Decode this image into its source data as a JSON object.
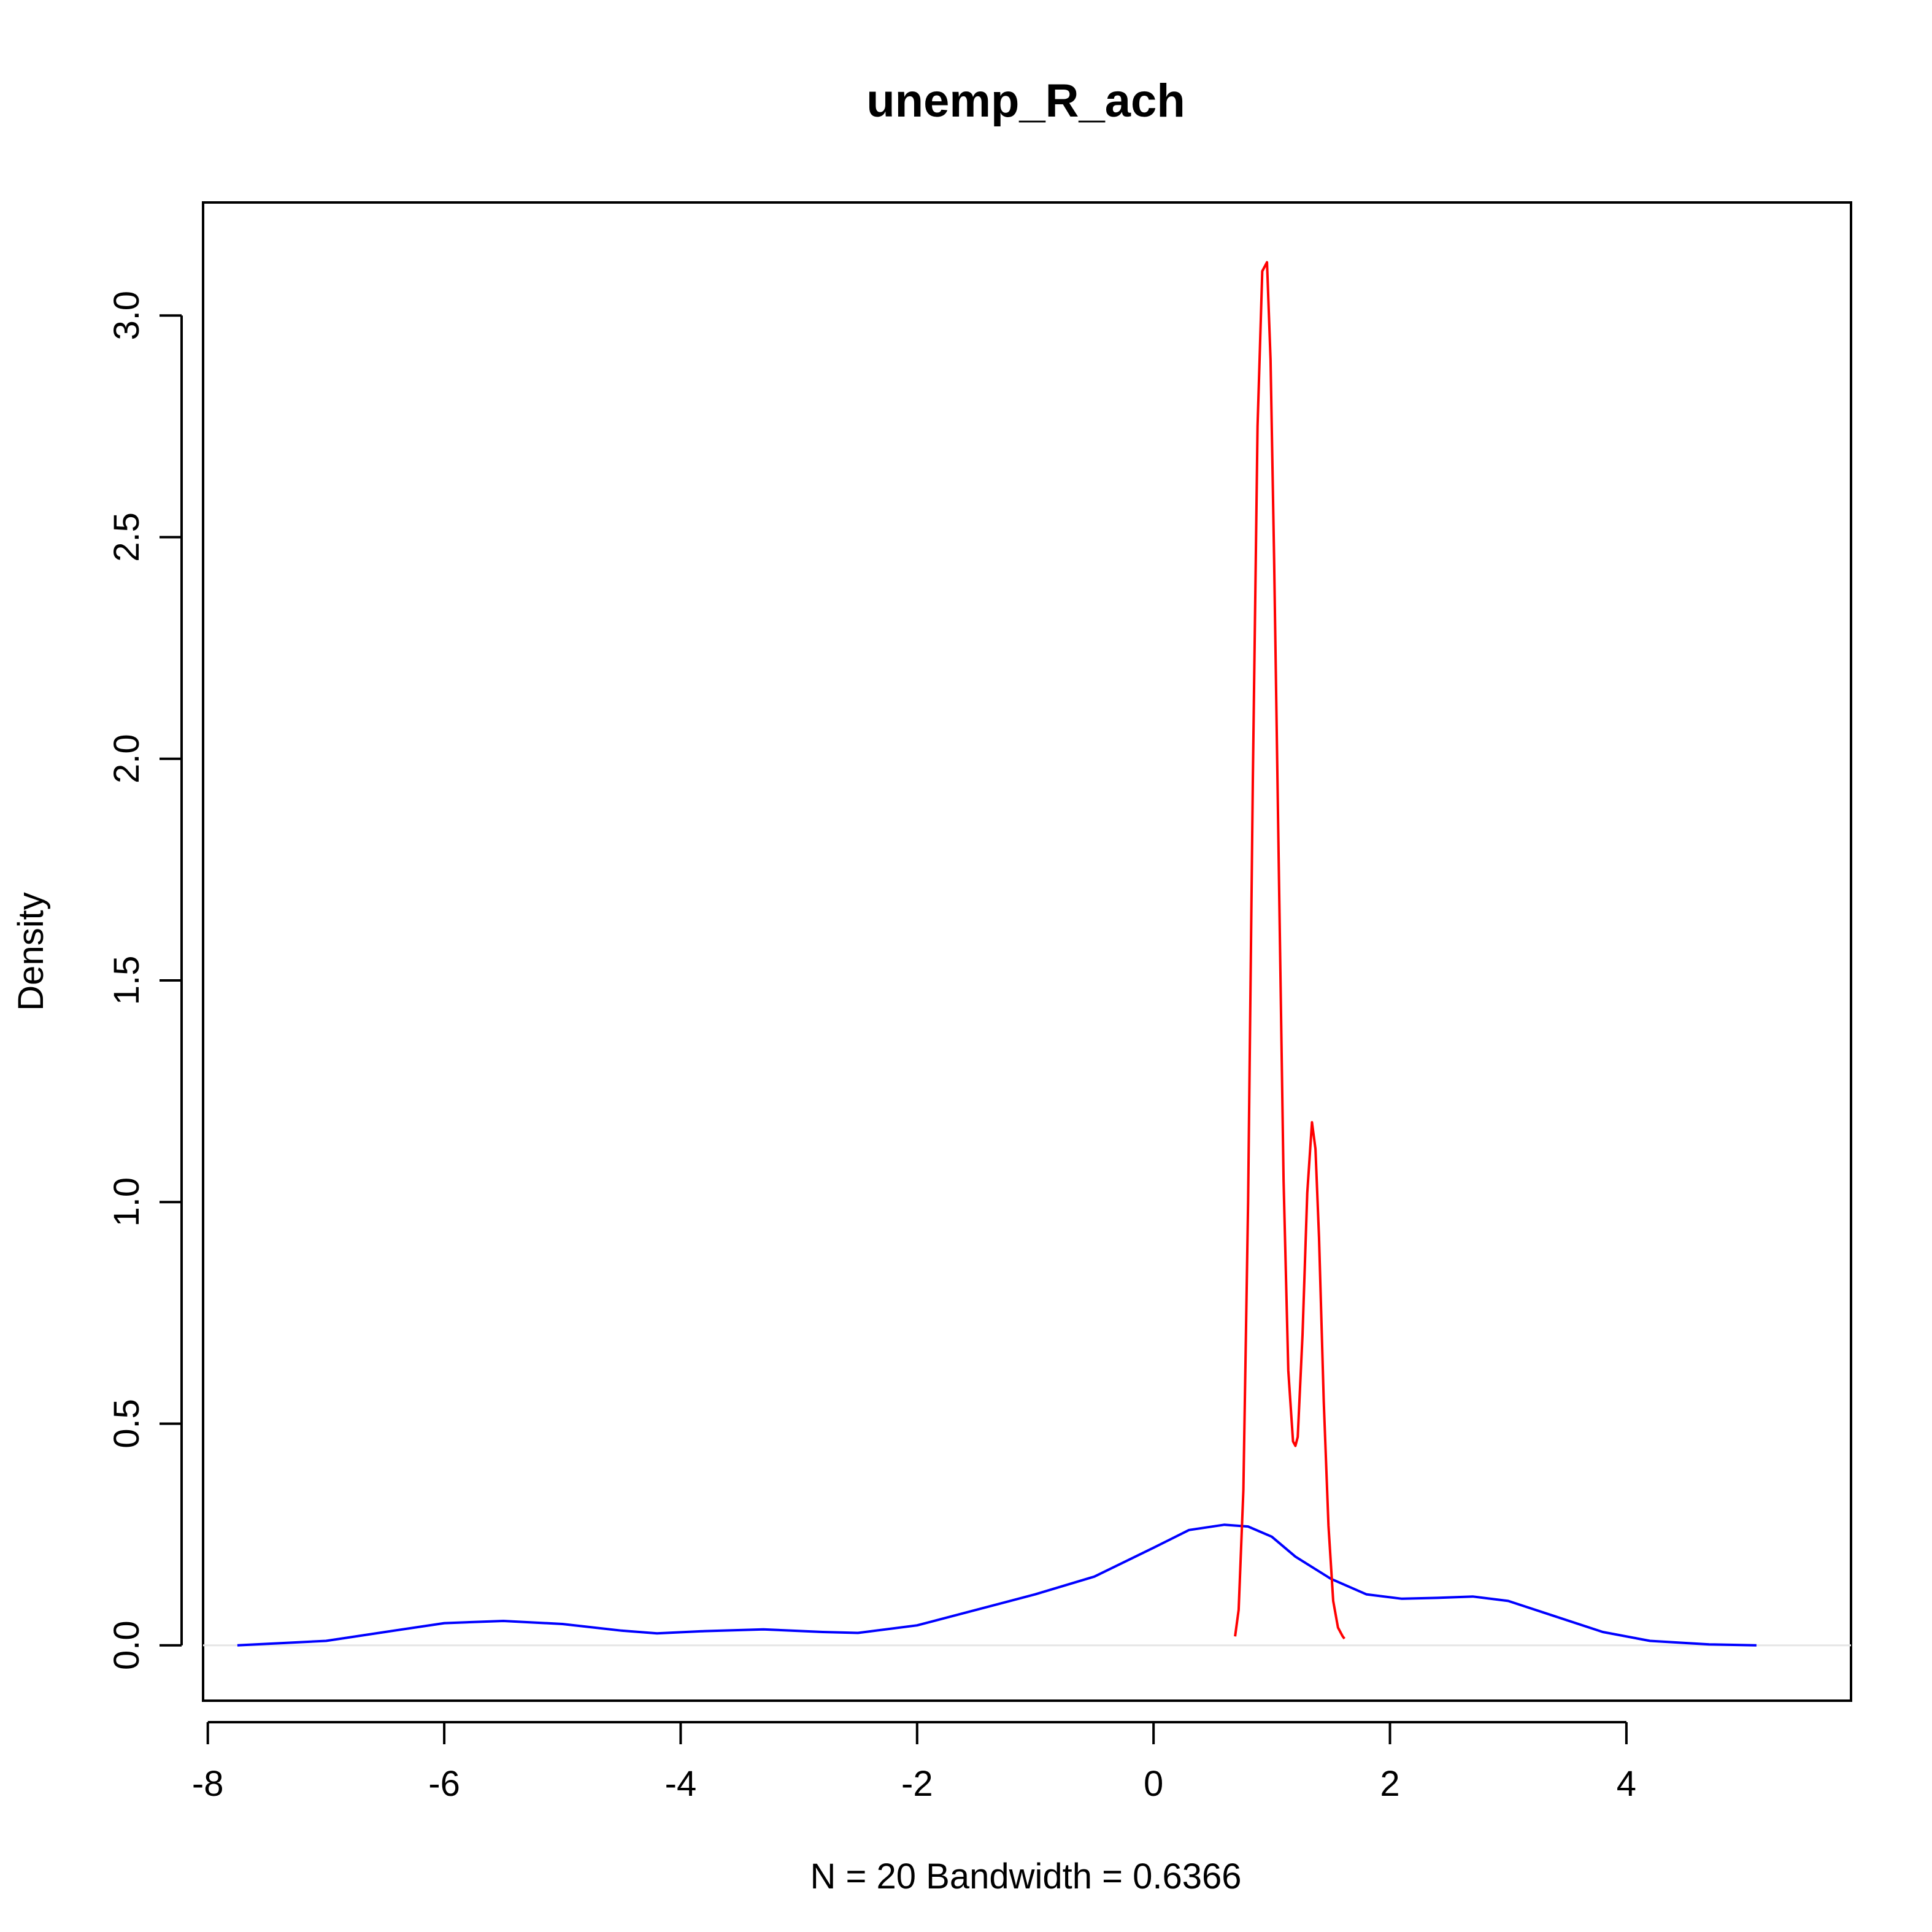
{
  "chart_data": {
    "type": "line",
    "title": "unemp_R_ach",
    "xlabel": "N = 20   Bandwidth = 0.6366",
    "ylabel": "Density",
    "xlim": [
      -8.04,
      5.9
    ],
    "ylim": [
      -0.125,
      3.255
    ],
    "x_ticks": [
      -8,
      -6,
      -4,
      -2,
      0,
      2,
      4
    ],
    "x_tick_labels": [
      "-8",
      "-6",
      "-4",
      "-2",
      "0",
      "2",
      "4"
    ],
    "y_ticks": [
      0.0,
      0.5,
      1.0,
      1.5,
      2.0,
      2.5,
      3.0
    ],
    "y_tick_labels": [
      "0.0",
      "0.5",
      "1.0",
      "1.5",
      "2.0",
      "2.5",
      "3.0"
    ],
    "grid": false,
    "baseline": 0,
    "colors": {
      "blue_series": "#0000ff",
      "red_series": "#ff0000",
      "baseline": "#e6e6e6"
    },
    "series": [
      {
        "color": "#0000ff",
        "x": [
          -7.75,
          -7.0,
          -6.5,
          -6.0,
          -5.5,
          -5.0,
          -4.5,
          -4.2,
          -3.8,
          -3.3,
          -2.8,
          -2.5,
          -2.0,
          -1.5,
          -1.0,
          -0.5,
          0.0,
          0.3,
          0.6,
          0.8,
          1.0,
          1.2,
          1.5,
          1.8,
          2.1,
          2.4,
          2.7,
          3.0,
          3.4,
          3.8,
          4.2,
          4.7,
          5.1
        ],
        "y": [
          0.0,
          0.01,
          0.03,
          0.05,
          0.055,
          0.048,
          0.033,
          0.027,
          0.032,
          0.036,
          0.03,
          0.028,
          0.045,
          0.08,
          0.115,
          0.155,
          0.22,
          0.26,
          0.272,
          0.268,
          0.245,
          0.2,
          0.15,
          0.115,
          0.105,
          0.107,
          0.11,
          0.1,
          0.065,
          0.03,
          0.01,
          0.002,
          0.0
        ]
      },
      {
        "color": "#ff0000",
        "x": [
          0.69,
          0.72,
          0.76,
          0.8,
          0.84,
          0.88,
          0.92,
          0.96,
          0.99,
          1.02,
          1.06,
          1.1,
          1.14,
          1.18,
          1.2,
          1.22,
          1.26,
          1.3,
          1.34,
          1.37,
          1.4,
          1.44,
          1.48,
          1.52,
          1.56,
          1.6,
          1.615
        ],
        "y": [
          0.02,
          0.08,
          0.35,
          1.0,
          1.95,
          2.75,
          3.1,
          3.12,
          2.9,
          2.45,
          1.75,
          1.05,
          0.62,
          0.46,
          0.45,
          0.47,
          0.7,
          1.02,
          1.18,
          1.12,
          0.92,
          0.55,
          0.27,
          0.1,
          0.04,
          0.02,
          0.015
        ]
      }
    ]
  }
}
